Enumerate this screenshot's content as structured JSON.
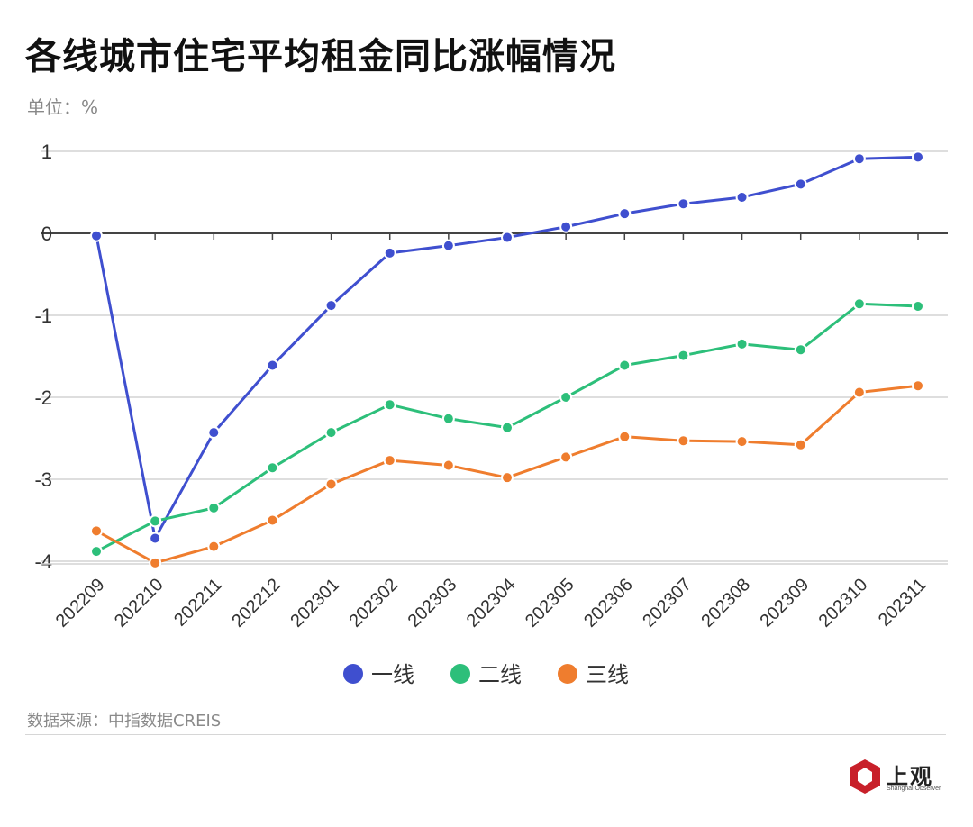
{
  "header": {
    "title": "各线城市住宅平均租金同比涨幅情况",
    "unit": "单位：%"
  },
  "footer": {
    "source": "数据来源：中指数据CREIS",
    "logo_cn": "上观",
    "logo_en": "Shanghai Observer"
  },
  "colors": {
    "tier1": "#3f4fcf",
    "tier2": "#2dbf7a",
    "tier3": "#ef7d2e",
    "grid": "#d3d3d3",
    "zero_line": "#444444",
    "logo_red": "#c8202a"
  },
  "chart_data": {
    "type": "line",
    "title": "各线城市住宅平均租金同比涨幅情况",
    "ylabel": "单位：%",
    "xlabel": "",
    "ylim": [
      -4,
      1
    ],
    "yticks": [
      "1",
      "0",
      "-1",
      "-2",
      "-3",
      "-4"
    ],
    "grid": true,
    "legend_position": "bottom-center",
    "categories": [
      "202209",
      "202210",
      "202211",
      "202212",
      "202301",
      "202302",
      "202303",
      "202304",
      "202305",
      "202306",
      "202307",
      "202308",
      "202309",
      "202310",
      "202311"
    ],
    "series": [
      {
        "name": "一线",
        "color": "#3f4fcf",
        "values": [
          -0.03,
          -3.72,
          -2.43,
          -1.61,
          -0.88,
          -0.24,
          -0.15,
          -0.05,
          0.08,
          0.24,
          0.36,
          0.44,
          0.6,
          0.91,
          0.93
        ]
      },
      {
        "name": "二线",
        "color": "#2dbf7a",
        "values": [
          -3.88,
          -3.51,
          -3.35,
          -2.86,
          -2.43,
          -2.09,
          -2.26,
          -2.37,
          -2.0,
          -1.61,
          -1.49,
          -1.35,
          -1.42,
          -0.86,
          -0.89
        ]
      },
      {
        "name": "三线",
        "color": "#ef7d2e",
        "values": [
          -3.63,
          -4.02,
          -3.82,
          -3.5,
          -3.06,
          -2.77,
          -2.83,
          -2.98,
          -2.73,
          -2.48,
          -2.53,
          -2.54,
          -2.58,
          -1.94,
          -1.86
        ]
      }
    ]
  }
}
